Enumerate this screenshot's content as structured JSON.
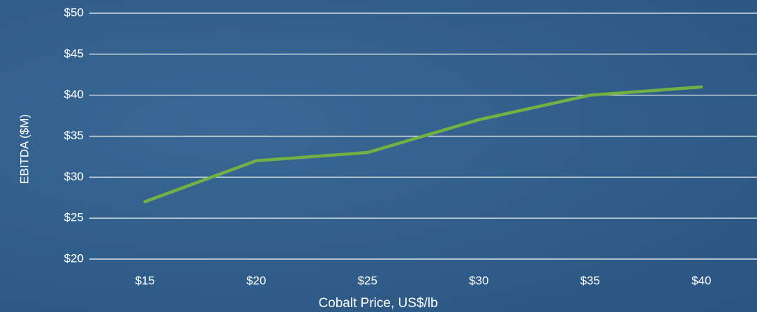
{
  "chart_data": {
    "type": "line",
    "x_label": "Cobalt Price, US$/lb",
    "y_label": "EBITDA ($M)",
    "categories": [
      "$15",
      "$20",
      "$25",
      "$30",
      "$35",
      "$40"
    ],
    "series": [
      {
        "color": "#72b043",
        "values": [
          27,
          32,
          33,
          37,
          40,
          41
        ]
      }
    ],
    "ylim": [
      20,
      50
    ],
    "yticks": [
      {
        "value": 20,
        "label": "$20"
      },
      {
        "value": 25,
        "label": "$25"
      },
      {
        "value": 30,
        "label": "$30"
      },
      {
        "value": 35,
        "label": "$35"
      },
      {
        "value": 40,
        "label": "$40"
      },
      {
        "value": 45,
        "label": "$45"
      },
      {
        "value": 50,
        "label": "$50"
      }
    ],
    "grid": true
  }
}
